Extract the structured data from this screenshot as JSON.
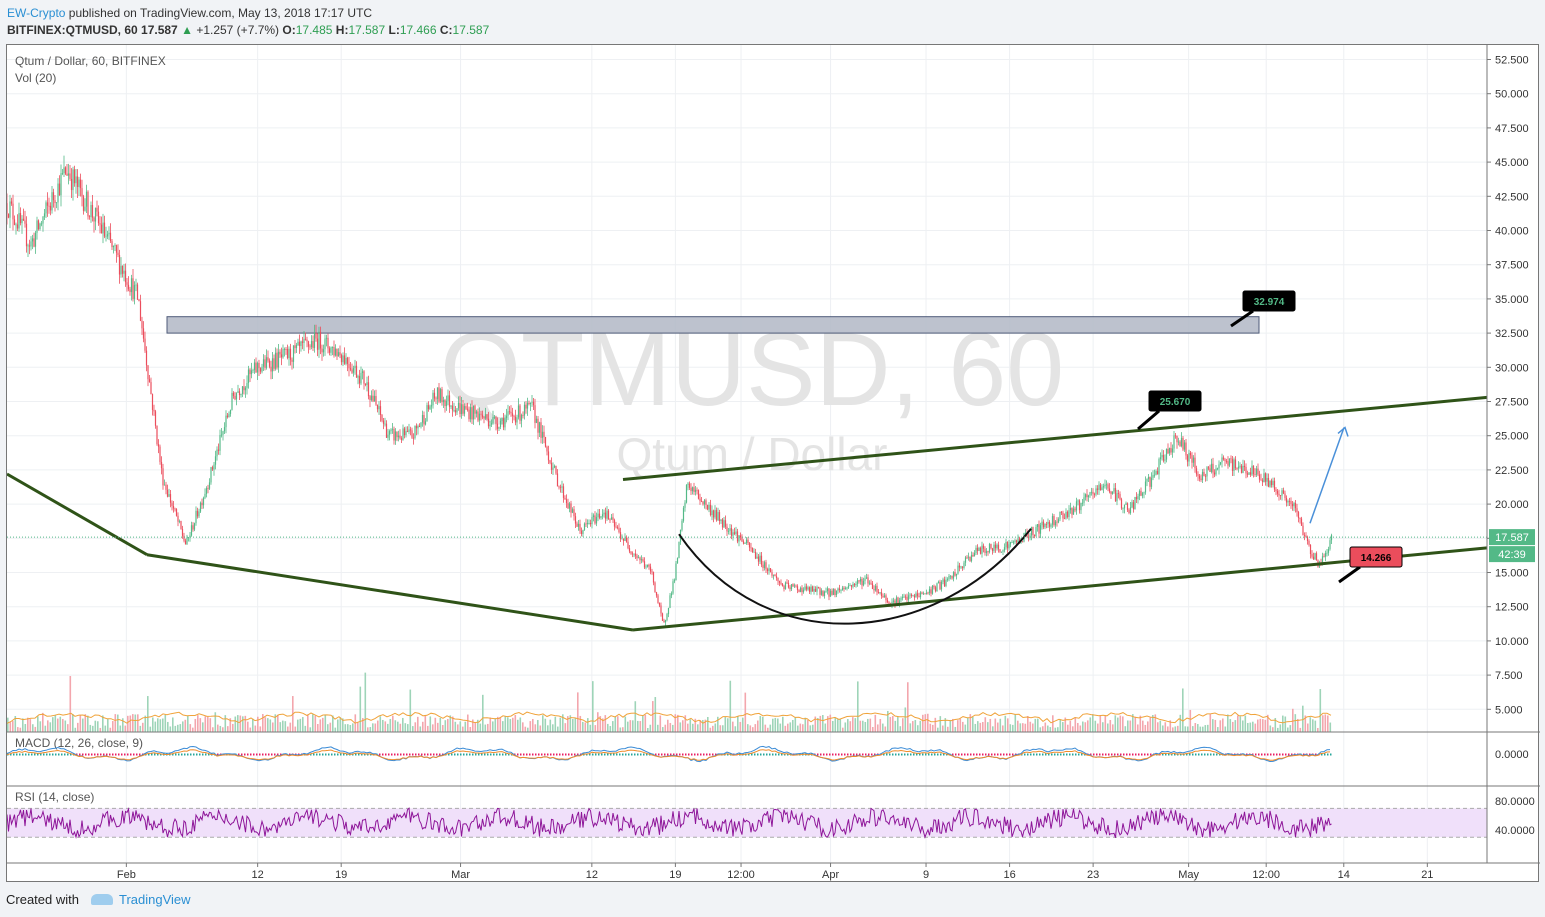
{
  "header": {
    "author": "EW-Crypto",
    "published_text": " published on TradingView.com, May 13, 2018 17:17 UTC",
    "symbol": "BITFINEX:QTMUSD, 60",
    "last": "17.587",
    "change": "+1.257 (+7.7%)",
    "o_label": "O:",
    "o": "17.485",
    "h_label": "H:",
    "h": "17.587",
    "l_label": "L:",
    "l": "17.466",
    "c_label": "C:",
    "c": "17.587"
  },
  "legend": {
    "title": "Qtum / Dollar, 60, BITFINEX",
    "vol": "Vol (20)",
    "macd": "MACD (12, 26, close, 9)",
    "rsi": "RSI (14, close)"
  },
  "watermark": {
    "symbol": "QTMUSD, 60",
    "name": "Qtum / Dollar"
  },
  "footer": {
    "created": "Created with",
    "brand": "TradingView"
  },
  "colors": {
    "up": "#53b987",
    "down": "#eb4d5c",
    "trend": "#2f5318",
    "arrow": "#4a90d9",
    "rsi": "#8e1599",
    "rsi_band": "#f0e0fa",
    "price_tag": "#53b987"
  },
  "chart_data": {
    "type": "candlestick",
    "title": "Qtum / Dollar, 60, BITFINEX",
    "price_axis": {
      "ticks": [
        52.5,
        50,
        47.5,
        45,
        42.5,
        40,
        37.5,
        35,
        32.5,
        30,
        27.5,
        25,
        22.5,
        20,
        17.5,
        15,
        12.5,
        10,
        7.5,
        5
      ],
      "tick_labels": [
        "52.500",
        "50.000",
        "47.500",
        "45.000",
        "42.500",
        "40.000",
        "37.500",
        "35.000",
        "32.500",
        "30.000",
        "27.500",
        "25.000",
        "22.500",
        "20.000",
        "17.500",
        "15.000",
        "12.500",
        "10.000",
        "7.500",
        "5.000"
      ]
    },
    "time_axis": {
      "labels": [
        "Feb",
        "12",
        "19",
        "Mar",
        "12",
        "19",
        "12:00",
        "Apr",
        "9",
        "16",
        "23",
        "May",
        "12:00",
        "14",
        "21"
      ],
      "dates": [
        "2018-02-01",
        "2018-02-12",
        "2018-02-19",
        "2018-03-01",
        "2018-03-12",
        "2018-03-19",
        "2018-03-24 12:00",
        "2018-04-01",
        "2018-04-09",
        "2018-04-16",
        "2018-04-23",
        "2018-05-01",
        "2018-05-07 12:00",
        "2018-05-14",
        "2018-05-21"
      ]
    },
    "price_path": [
      [
        "2018-01-22",
        42
      ],
      [
        "2018-01-24",
        39
      ],
      [
        "2018-01-27",
        44.5
      ],
      [
        "2018-01-30",
        40
      ],
      [
        "2018-02-02",
        35
      ],
      [
        "2018-02-04",
        22
      ],
      [
        "2018-02-06",
        17
      ],
      [
        "2018-02-08",
        22
      ],
      [
        "2018-02-10",
        28
      ],
      [
        "2018-02-12",
        30
      ],
      [
        "2018-02-15",
        31
      ],
      [
        "2018-02-17",
        32
      ],
      [
        "2018-02-19",
        31
      ],
      [
        "2018-02-21",
        29
      ],
      [
        "2018-02-23",
        25
      ],
      [
        "2018-02-25",
        25
      ],
      [
        "2018-02-27",
        28
      ],
      [
        "2018-03-01",
        27
      ],
      [
        "2018-03-04",
        26
      ],
      [
        "2018-03-07",
        27
      ],
      [
        "2018-03-09",
        22
      ],
      [
        "2018-03-11",
        18
      ],
      [
        "2018-03-13",
        19.5
      ],
      [
        "2018-03-15",
        17
      ],
      [
        "2018-03-17",
        15
      ],
      [
        "2018-03-18",
        11
      ],
      [
        "2018-03-19",
        15
      ],
      [
        "2018-03-20",
        21.5
      ],
      [
        "2018-03-22",
        19.5
      ],
      [
        "2018-03-25",
        17
      ],
      [
        "2018-03-28",
        14
      ],
      [
        "2018-04-01",
        13.5
      ],
      [
        "2018-04-04",
        14.5
      ],
      [
        "2018-04-06",
        12.8
      ],
      [
        "2018-04-09",
        13.5
      ],
      [
        "2018-04-11",
        14.5
      ],
      [
        "2018-04-13",
        16.5
      ],
      [
        "2018-04-16",
        17
      ],
      [
        "2018-04-19",
        18.5
      ],
      [
        "2018-04-22",
        20
      ],
      [
        "2018-04-24",
        21.5
      ],
      [
        "2018-04-26",
        19.5
      ],
      [
        "2018-04-28",
        22
      ],
      [
        "2018-04-30",
        25
      ],
      [
        "2018-05-02",
        22
      ],
      [
        "2018-05-04",
        23
      ],
      [
        "2018-05-06",
        22.5
      ],
      [
        "2018-05-08",
        21.5
      ],
      [
        "2018-05-10",
        19.5
      ],
      [
        "2018-05-11",
        17
      ],
      [
        "2018-05-12",
        15.5
      ],
      [
        "2018-05-13",
        17.587
      ]
    ],
    "last_price": "17.587",
    "countdown": "42:39",
    "annotations": [
      {
        "label": "32.974",
        "type": "target-callout",
        "color": "#53b987"
      },
      {
        "label": "25.670",
        "type": "target-callout",
        "color": "#53b987"
      },
      {
        "label": "14.266",
        "type": "stop-callout",
        "color": "#eb4d5c"
      }
    ],
    "resistance_zone": [
      32.5,
      33.7
    ],
    "macd_axis": {
      "tick_labels": [
        "0.0000"
      ]
    },
    "rsi_axis": {
      "tick_labels": [
        "80.0000",
        "40.0000"
      ],
      "bands": [
        70,
        30
      ]
    }
  }
}
